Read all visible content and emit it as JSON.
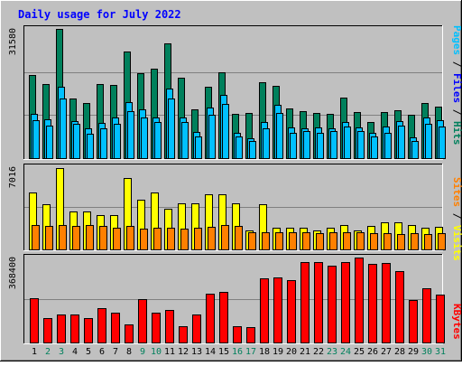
{
  "title": "Daily usage for July 2022",
  "colors": {
    "background": "#c0c0c0",
    "panel": "#c0c0c0",
    "hits": "#00805c",
    "files": "#00c0ff",
    "pages": "#00c0ff",
    "sites": "#ff8000",
    "visits": "#ffff00",
    "kbytes": "#ff0000",
    "title": "#0000ff",
    "weekend_day": "#00805c",
    "weekday": "#000000"
  },
  "right_labels": {
    "top": {
      "pages": "Pages",
      "sep1": " / ",
      "files": "Files",
      "sep2": " / ",
      "hits": "Hits"
    },
    "middle": {
      "sites": "Sites",
      "sep": " / ",
      "visits": "Visits"
    },
    "bottom": {
      "kbytes": "KBytes"
    }
  },
  "chart_data": [
    {
      "type": "bar",
      "panel": "hits-files-pages",
      "categories": [
        "1",
        "2",
        "3",
        "4",
        "5",
        "6",
        "7",
        "8",
        "9",
        "10",
        "11",
        "12",
        "13",
        "14",
        "15",
        "16",
        "17",
        "18",
        "19",
        "20",
        "21",
        "22",
        "23",
        "24",
        "25",
        "26",
        "27",
        "28",
        "29",
        "30",
        "31"
      ],
      "max_label": "31580",
      "ylim": [
        0,
        31580
      ],
      "series": [
        {
          "name": "Hits",
          "values": [
            20500,
            18200,
            31500,
            14800,
            13500,
            18100,
            17900,
            26100,
            20800,
            22000,
            28100,
            19800,
            12100,
            17500,
            21000,
            11000,
            11200,
            18600,
            17800,
            12200,
            11600,
            11200,
            11000,
            15000,
            11500,
            8900,
            11300,
            11800,
            10800,
            13500,
            12700
          ]
        },
        {
          "name": "Files",
          "values": [
            11000,
            9600,
            17500,
            9300,
            7400,
            8700,
            10100,
            13800,
            12000,
            10100,
            17100,
            10100,
            6500,
            12600,
            15500,
            6300,
            5000,
            8900,
            13200,
            7600,
            7500,
            7700,
            7500,
            9100,
            7600,
            6300,
            7900,
            9300,
            5200,
            10100,
            9400
          ]
        },
        {
          "name": "Pages",
          "values": [
            9500,
            8200,
            14800,
            8600,
            6200,
            7400,
            8500,
            11600,
            10100,
            9100,
            14800,
            8900,
            5500,
            10800,
            13400,
            5400,
            4400,
            7500,
            11200,
            6300,
            6700,
            6300,
            6800,
            7800,
            6700,
            5400,
            6400,
            8100,
            4400,
            8600,
            8000
          ]
        }
      ]
    },
    {
      "type": "bar",
      "panel": "sites-visits",
      "categories": [
        "1",
        "2",
        "3",
        "4",
        "5",
        "6",
        "7",
        "8",
        "9",
        "10",
        "11",
        "12",
        "13",
        "14",
        "15",
        "16",
        "17",
        "18",
        "19",
        "20",
        "21",
        "22",
        "23",
        "24",
        "25",
        "26",
        "27",
        "28",
        "29",
        "30",
        "31"
      ],
      "max_label": "7016",
      "ylim": [
        0,
        7016
      ],
      "series": [
        {
          "name": "Visits",
          "values": [
            4850,
            3900,
            6950,
            3300,
            3250,
            3000,
            2950,
            6100,
            4250,
            4850,
            3500,
            3950,
            3950,
            4750,
            4700,
            3950,
            1700,
            3900,
            1900,
            1900,
            1900,
            1700,
            1900,
            2100,
            1700,
            2050,
            2400,
            2400,
            2100,
            1900,
            1950
          ]
        },
        {
          "name": "Sites",
          "values": [
            2100,
            2050,
            2100,
            2050,
            2100,
            2050,
            1900,
            2050,
            1850,
            1900,
            1900,
            1850,
            1900,
            2000,
            2100,
            2050,
            1550,
            1550,
            1500,
            1550,
            1500,
            1450,
            1550,
            1500,
            1500,
            1450,
            1450,
            1400,
            1450,
            1400,
            1450
          ]
        }
      ]
    },
    {
      "type": "bar",
      "panel": "kbytes",
      "categories": [
        "1",
        "2",
        "3",
        "4",
        "5",
        "6",
        "7",
        "8",
        "9",
        "10",
        "11",
        "12",
        "13",
        "14",
        "15",
        "16",
        "17",
        "18",
        "19",
        "20",
        "21",
        "22",
        "23",
        "24",
        "25",
        "26",
        "27",
        "28",
        "29",
        "30",
        "31"
      ],
      "max_label": "368400",
      "ylim": [
        0,
        368400
      ],
      "series": [
        {
          "name": "KBytes",
          "values": [
            195000,
            110000,
            125000,
            125000,
            110000,
            150000,
            130000,
            80000,
            190000,
            130000,
            145000,
            75000,
            125000,
            215000,
            220000,
            75000,
            70000,
            280000,
            285000,
            270000,
            350000,
            350000,
            335000,
            350000,
            368400,
            340000,
            345000,
            310000,
            185000,
            235000,
            210000
          ]
        }
      ]
    }
  ]
}
